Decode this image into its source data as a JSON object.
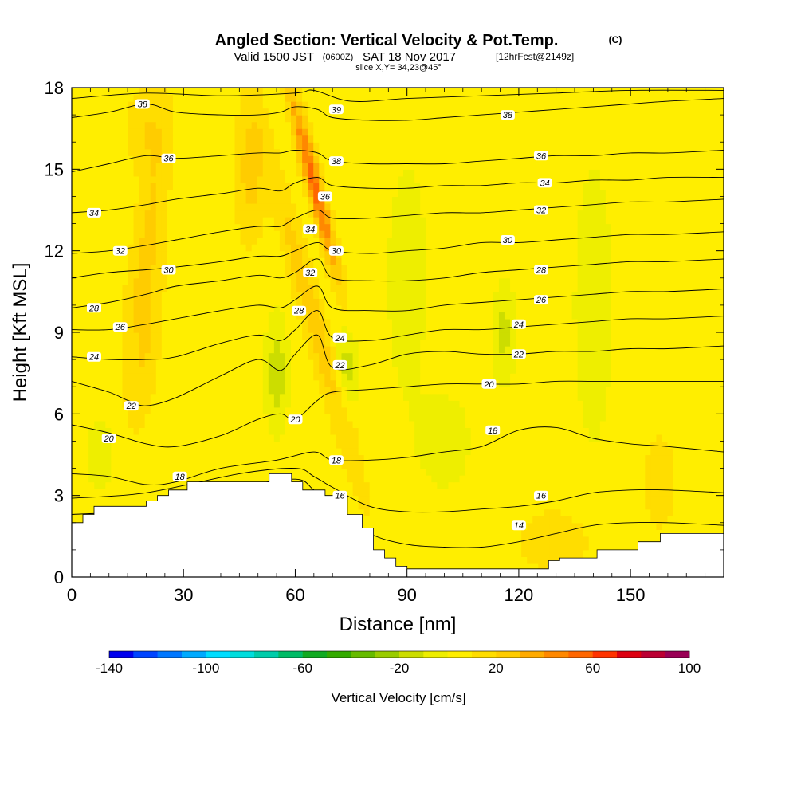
{
  "chart_data": {
    "type": "heatmap",
    "title": "Angled Section: Vertical Velocity & Pot.Temp.",
    "title_unit": "(C)",
    "subtitle_prefix": "Valid 1500 JST",
    "subtitle_utc": "(0600Z)",
    "subtitle_date": "SAT 18 Nov 2017",
    "subtitle_fcst": "[12hrFcst@2149z]",
    "slice_label": "slice X,Y= 34,23@45°",
    "xlabel": "Distance [nm]",
    "ylabel": "Height [Kft MSL]",
    "xlim": [
      0,
      175
    ],
    "ylim": [
      0,
      18
    ],
    "x_ticks": [
      "0",
      "30",
      "60",
      "90",
      "120",
      "150"
    ],
    "x_tick_values": [
      0,
      30,
      60,
      90,
      120,
      150
    ],
    "y_ticks": [
      "0",
      "3",
      "6",
      "9",
      "12",
      "15",
      "18"
    ],
    "y_tick_values": [
      0,
      3,
      6,
      9,
      12,
      15,
      18
    ],
    "colorbar": {
      "label": "Vertical Velocity [cm/s]",
      "min": -140,
      "max": 100,
      "step": 10,
      "tick_labels": [
        "-140",
        "-100",
        "-60",
        "-20",
        "20",
        "60",
        "100"
      ],
      "tick_values": [
        -140,
        -100,
        -60,
        -20,
        20,
        60,
        100
      ],
      "colors": [
        "#0000ee",
        "#0044ff",
        "#0077ff",
        "#00aaff",
        "#00ddff",
        "#00dddd",
        "#00ccaa",
        "#00bb66",
        "#11aa22",
        "#33aa00",
        "#66bb00",
        "#99cc00",
        "#ccdd00",
        "#eeee00",
        "#ffee00",
        "#ffdd00",
        "#ffcc00",
        "#ffaa00",
        "#ff8800",
        "#ff6600",
        "#ff3300",
        "#dd0011",
        "#bb0033",
        "#990055"
      ]
    },
    "velocity_field": {
      "background": 5,
      "features": [
        {
          "x": 65,
          "y": 14.5,
          "sx": 2.2,
          "sy": 3.5,
          "tilt": -0.18,
          "amp": 50
        },
        {
          "x": 65,
          "y": 9.5,
          "sx": 3.2,
          "sy": 6,
          "tilt": -0.2,
          "amp": 22
        },
        {
          "x": 20,
          "y": 12,
          "sx": 4,
          "sy": 4.5,
          "tilt": 0.1,
          "amp": 18
        },
        {
          "x": 20,
          "y": 8,
          "sx": 3.5,
          "sy": 3,
          "tilt": 0.1,
          "amp": 12
        },
        {
          "x": 48,
          "y": 15,
          "sx": 4,
          "sy": 2.5,
          "tilt": 0,
          "amp": 20
        },
        {
          "x": 20,
          "y": 16.5,
          "sx": 5,
          "sy": 1.5,
          "tilt": 0,
          "amp": 14
        },
        {
          "x": 55,
          "y": 7.5,
          "sx": 3,
          "sy": 2,
          "tilt": 0,
          "amp": -22
        },
        {
          "x": 74,
          "y": 7.8,
          "sx": 3,
          "sy": 1.5,
          "tilt": 0,
          "amp": -20
        },
        {
          "x": 116,
          "y": 9,
          "sx": 3,
          "sy": 1.8,
          "tilt": 0,
          "amp": -18
        },
        {
          "x": 90,
          "y": 11,
          "sx": 5,
          "sy": 4,
          "tilt": 0,
          "amp": -14
        },
        {
          "x": 140,
          "y": 10,
          "sx": 6,
          "sy": 6,
          "tilt": 0,
          "amp": -10
        },
        {
          "x": 130,
          "y": 1.3,
          "sx": 10,
          "sy": 1.2,
          "tilt": 0,
          "amp": 12
        },
        {
          "x": 158,
          "y": 3.5,
          "sx": 5,
          "sy": 2,
          "tilt": 0,
          "amp": 10
        },
        {
          "x": 8,
          "y": 4.5,
          "sx": 6,
          "sy": 2,
          "tilt": 0,
          "amp": -8
        },
        {
          "x": 100,
          "y": 5,
          "sx": 8,
          "sy": 2,
          "tilt": 0,
          "amp": -10
        }
      ]
    },
    "terrain": {
      "x": [
        0,
        3,
        3,
        6,
        6,
        7,
        7,
        20,
        20,
        23,
        23,
        26,
        26,
        31,
        31,
        35,
        35,
        39,
        39,
        53,
        53,
        59,
        59,
        62,
        62,
        68,
        68,
        74,
        74,
        78,
        78,
        81,
        81,
        84,
        84,
        87,
        87,
        90,
        90,
        99,
        99,
        128,
        128,
        131,
        131,
        141,
        141,
        152,
        152,
        158,
        158,
        175
      ],
      "height": [
        2,
        2,
        2.3,
        2.3,
        2.6,
        2.6,
        2.6,
        2.6,
        2.8,
        2.8,
        3,
        3,
        3.2,
        3.2,
        3.5,
        3.5,
        3.5,
        3.5,
        3.5,
        3.5,
        3.8,
        3.8,
        3.5,
        3.5,
        3.2,
        3.2,
        3,
        3,
        2.3,
        2.3,
        1.8,
        1.8,
        1,
        1,
        0.7,
        0.7,
        0.4,
        0.4,
        0.3,
        0.3,
        0.3,
        0.3,
        0.6,
        0.6,
        0.7,
        0.7,
        1,
        1,
        1.3,
        1.3,
        1.6,
        1.6
      ]
    },
    "theta_contours": [
      {
        "theta": 14,
        "x": [
          0,
          20,
          45,
          60,
          65,
          70,
          80,
          90,
          100,
          110,
          120,
          130,
          140,
          150,
          160,
          175
        ],
        "y": [
          2.3,
          2.5,
          3.3,
          3.6,
          3.2,
          2.6,
          1.6,
          1.2,
          1.1,
          1.1,
          1.3,
          1.6,
          1.9,
          2.0,
          2.0,
          1.9
        ],
        "labels": [
          [
            120,
            1.9
          ]
        ]
      },
      {
        "theta": 16,
        "x": [
          0,
          20,
          45,
          60,
          65,
          70,
          80,
          90,
          100,
          110,
          120,
          130,
          140,
          150,
          160,
          175
        ],
        "y": [
          2.9,
          3.1,
          3.8,
          4.0,
          3.7,
          3.3,
          2.6,
          2.4,
          2.4,
          2.5,
          2.6,
          2.8,
          3.1,
          3.2,
          3.2,
          3.1
        ],
        "labels": [
          [
            72,
            3.0
          ],
          [
            126,
            3.0
          ]
        ]
      },
      {
        "theta": 18,
        "x": [
          0,
          10,
          20,
          28,
          40,
          55,
          65,
          70,
          80,
          90,
          100,
          110,
          120,
          130,
          140,
          150,
          160,
          175
        ],
        "y": [
          3.8,
          3.7,
          3.4,
          3.5,
          4.0,
          4.3,
          4.6,
          4.3,
          4.3,
          4.4,
          4.6,
          4.8,
          5.4,
          5.5,
          5.1,
          4.9,
          4.8,
          4.6
        ],
        "labels": [
          [
            29,
            3.7
          ],
          [
            71,
            4.3
          ],
          [
            113,
            5.4
          ]
        ]
      },
      {
        "theta": 20,
        "x": [
          0,
          10,
          20,
          28,
          40,
          50,
          56,
          60,
          66,
          70,
          80,
          90,
          100,
          110,
          120,
          130,
          140,
          150,
          160,
          175
        ],
        "y": [
          5.6,
          5.3,
          4.9,
          4.8,
          5.2,
          5.8,
          6.0,
          5.8,
          6.5,
          6.8,
          6.9,
          7.0,
          7.1,
          7.1,
          7.1,
          7.2,
          7.2,
          7.2,
          7.2,
          7.2
        ],
        "labels": [
          [
            10,
            5.1
          ],
          [
            60,
            5.8
          ],
          [
            112,
            7.1
          ]
        ]
      },
      {
        "theta": 22,
        "x": [
          0,
          10,
          15,
          20,
          28,
          40,
          50,
          56,
          60,
          66,
          70,
          80,
          90,
          100,
          110,
          120,
          130,
          140,
          150,
          160,
          175
        ],
        "y": [
          7.2,
          6.8,
          6.5,
          6.3,
          6.6,
          7.4,
          8.0,
          7.6,
          8.2,
          8.9,
          7.7,
          7.8,
          8.2,
          8.3,
          8.2,
          8.2,
          8.3,
          8.3,
          8.4,
          8.4,
          8.5
        ],
        "labels": [
          [
            16,
            6.3
          ],
          [
            72,
            7.8
          ],
          [
            120,
            8.2
          ]
        ]
      },
      {
        "theta": 24,
        "x": [
          0,
          10,
          20,
          28,
          40,
          50,
          56,
          60,
          66,
          70,
          80,
          90,
          100,
          110,
          120,
          130,
          140,
          150,
          160,
          175
        ],
        "y": [
          8.1,
          8.0,
          8.0,
          8.1,
          8.6,
          8.9,
          8.7,
          9.1,
          9.8,
          8.8,
          8.7,
          8.9,
          9.1,
          9.1,
          9.2,
          9.3,
          9.4,
          9.5,
          9.5,
          9.6
        ],
        "labels": [
          [
            6,
            8.1
          ],
          [
            72,
            8.8
          ],
          [
            120,
            9.3
          ]
        ]
      },
      {
        "theta": 26,
        "x": [
          0,
          10,
          20,
          28,
          40,
          50,
          56,
          60,
          66,
          70,
          80,
          90,
          100,
          110,
          120,
          130,
          140,
          150,
          160,
          175
        ],
        "y": [
          9.1,
          9.1,
          9.3,
          9.5,
          9.8,
          10.0,
          9.9,
          10.2,
          10.7,
          9.9,
          9.8,
          9.8,
          10.0,
          10.1,
          10.2,
          10.3,
          10.4,
          10.5,
          10.5,
          10.6
        ],
        "labels": [
          [
            13,
            9.2
          ],
          [
            126,
            10.2
          ]
        ]
      },
      {
        "theta": 28,
        "x": [
          0,
          10,
          20,
          28,
          40,
          50,
          56,
          60,
          66,
          70,
          80,
          90,
          100,
          110,
          120,
          130,
          140,
          150,
          160,
          175
        ],
        "y": [
          9.9,
          10.1,
          10.4,
          10.7,
          10.9,
          11.1,
          11.0,
          11.2,
          11.7,
          11.0,
          10.9,
          10.9,
          11.0,
          11.2,
          11.3,
          11.4,
          11.5,
          11.6,
          11.6,
          11.7
        ],
        "labels": [
          [
            6,
            9.9
          ],
          [
            61,
            9.8
          ],
          [
            126,
            11.3
          ]
        ]
      },
      {
        "theta": 30,
        "x": [
          0,
          10,
          20,
          28,
          40,
          50,
          56,
          60,
          66,
          70,
          80,
          90,
          100,
          110,
          120,
          130,
          140,
          150,
          160,
          175
        ],
        "y": [
          11.0,
          11.2,
          11.3,
          11.4,
          11.6,
          11.8,
          11.8,
          12.0,
          12.3,
          12.0,
          11.9,
          12.0,
          12.1,
          12.3,
          12.3,
          12.4,
          12.5,
          12.6,
          12.6,
          12.7
        ],
        "labels": [
          [
            26,
            11.3
          ],
          [
            71,
            12.0
          ],
          [
            117,
            12.4
          ]
        ]
      },
      {
        "theta": 32,
        "x": [
          0,
          10,
          20,
          28,
          40,
          50,
          56,
          60,
          66,
          70,
          80,
          90,
          100,
          110,
          120,
          130,
          140,
          150,
          160,
          175
        ],
        "y": [
          11.9,
          12.0,
          12.2,
          12.4,
          12.7,
          12.9,
          12.9,
          13.2,
          13.5,
          13.2,
          13.2,
          13.3,
          13.4,
          13.4,
          13.5,
          13.6,
          13.7,
          13.8,
          13.8,
          13.9
        ],
        "labels": [
          [
            13,
            12.0
          ],
          [
            64,
            11.2
          ],
          [
            126,
            13.5
          ]
        ]
      },
      {
        "theta": 34,
        "x": [
          0,
          10,
          20,
          28,
          40,
          50,
          56,
          60,
          66,
          70,
          80,
          90,
          100,
          110,
          120,
          130,
          140,
          150,
          160,
          175
        ],
        "y": [
          13.4,
          13.5,
          13.7,
          13.9,
          14.1,
          14.3,
          14.2,
          14.5,
          14.7,
          14.4,
          14.3,
          14.3,
          14.4,
          14.4,
          14.5,
          14.5,
          14.6,
          14.6,
          14.7,
          14.7
        ],
        "labels": [
          [
            6,
            13.4
          ],
          [
            64,
            12.8
          ],
          [
            127,
            14.5
          ]
        ]
      },
      {
        "theta": 36,
        "x": [
          0,
          10,
          20,
          28,
          40,
          50,
          56,
          60,
          66,
          70,
          80,
          90,
          100,
          110,
          120,
          130,
          140,
          150,
          160,
          175
        ],
        "y": [
          14.9,
          15.2,
          15.5,
          15.4,
          15.5,
          15.6,
          15.6,
          15.7,
          15.6,
          15.3,
          15.2,
          15.2,
          15.2,
          15.3,
          15.4,
          15.5,
          15.5,
          15.6,
          15.6,
          15.7
        ],
        "labels": [
          [
            26,
            15.4
          ],
          [
            68,
            14.0
          ],
          [
            126,
            15.5
          ]
        ]
      },
      {
        "theta": 38,
        "x": [
          0,
          10,
          20,
          28,
          40,
          50,
          56,
          60,
          66,
          70,
          80,
          90,
          100,
          110,
          120,
          130,
          140,
          150,
          160,
          175
        ],
        "y": [
          16.9,
          17.1,
          17.4,
          17.1,
          17.0,
          17.0,
          17.1,
          17.3,
          17.2,
          16.9,
          16.8,
          16.8,
          16.9,
          17.0,
          17.1,
          17.2,
          17.3,
          17.4,
          17.5,
          17.6
        ],
        "labels": [
          [
            19,
            17.4
          ],
          [
            71,
            15.3
          ],
          [
            117,
            17.0
          ]
        ]
      },
      {
        "theta": 39,
        "x": [
          0,
          20,
          40,
          60,
          65,
          75,
          90,
          110,
          130,
          150,
          175
        ],
        "y": [
          17.6,
          17.8,
          17.7,
          17.8,
          17.9,
          17.5,
          17.6,
          17.7,
          17.8,
          17.9,
          17.9
        ],
        "labels": [
          [
            71,
            17.2
          ]
        ]
      }
    ]
  }
}
